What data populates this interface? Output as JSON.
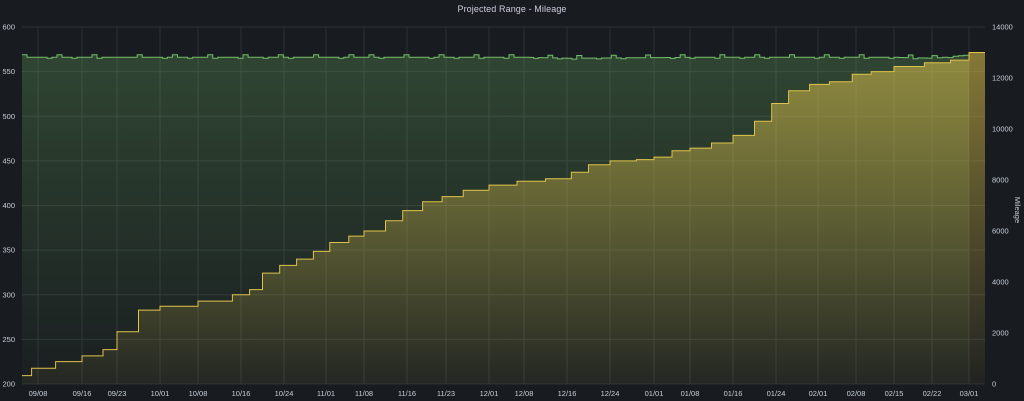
{
  "panel": {
    "title": "Projected Range - Mileage"
  },
  "chart_data": {
    "type": "line",
    "title": "Projected Range - Mileage",
    "x_tick_labels": [
      "09/08",
      "09/16",
      "09/23",
      "10/01",
      "10/08",
      "10/16",
      "10/24",
      "11/01",
      "11/08",
      "11/16",
      "11/23",
      "12/01",
      "12/08",
      "12/16",
      "12/24",
      "01/01",
      "01/08",
      "01/16",
      "01/24",
      "02/01",
      "02/08",
      "02/15",
      "02/22",
      "03/01"
    ],
    "x_range": [
      "09/04",
      "03/04"
    ],
    "y_left": {
      "label": "",
      "ticks": [
        200,
        250,
        300,
        350,
        400,
        450,
        500,
        550,
        600
      ],
      "lim": [
        200,
        600
      ]
    },
    "y_right": {
      "label": "Mileage",
      "ticks": [
        0,
        2000,
        4000,
        6000,
        8000,
        10000,
        12000,
        14000
      ],
      "lim": [
        0,
        14000
      ]
    },
    "grid": true,
    "series": [
      {
        "name": "",
        "axis": "left",
        "color": "#73bf69",
        "x_index": [
          0,
          3,
          9,
          13,
          14,
          17,
          22,
          23,
          24
        ],
        "values": [
          566,
          566,
          566,
          566,
          565,
          566,
          566,
          565,
          569
        ]
      },
      {
        "name": "",
        "axis": "right",
        "color": "#e0c34a",
        "x_index": [
          0,
          0.6,
          1.4,
          2.0,
          2.6,
          3.0,
          3.5,
          4.0,
          5.0,
          5.8,
          6.2,
          6.5,
          6.9,
          7.3,
          7.7,
          8.1,
          8.6,
          9.0,
          9.5,
          9.9,
          10.4,
          10.9,
          11.4,
          12.0,
          12.8,
          13.5,
          14.1,
          14.5,
          15.0,
          15.6,
          16.0,
          16.5,
          17.0,
          17.5,
          18.0,
          18.5,
          18.9,
          19.3,
          19.8,
          20.3,
          20.9,
          21.4,
          22.0,
          22.8,
          23.5,
          24.0
        ],
        "values": [
          330,
          620,
          880,
          1100,
          1350,
          2050,
          2900,
          3050,
          3250,
          3500,
          3700,
          4350,
          4650,
          4900,
          5200,
          5550,
          5800,
          6000,
          6400,
          6800,
          7150,
          7350,
          7600,
          7800,
          7950,
          8050,
          8300,
          8600,
          8750,
          8800,
          8900,
          9150,
          9250,
          9450,
          9750,
          10300,
          11000,
          11500,
          11750,
          11850,
          12150,
          12250,
          12450,
          12600,
          12700,
          13000
        ]
      }
    ]
  }
}
